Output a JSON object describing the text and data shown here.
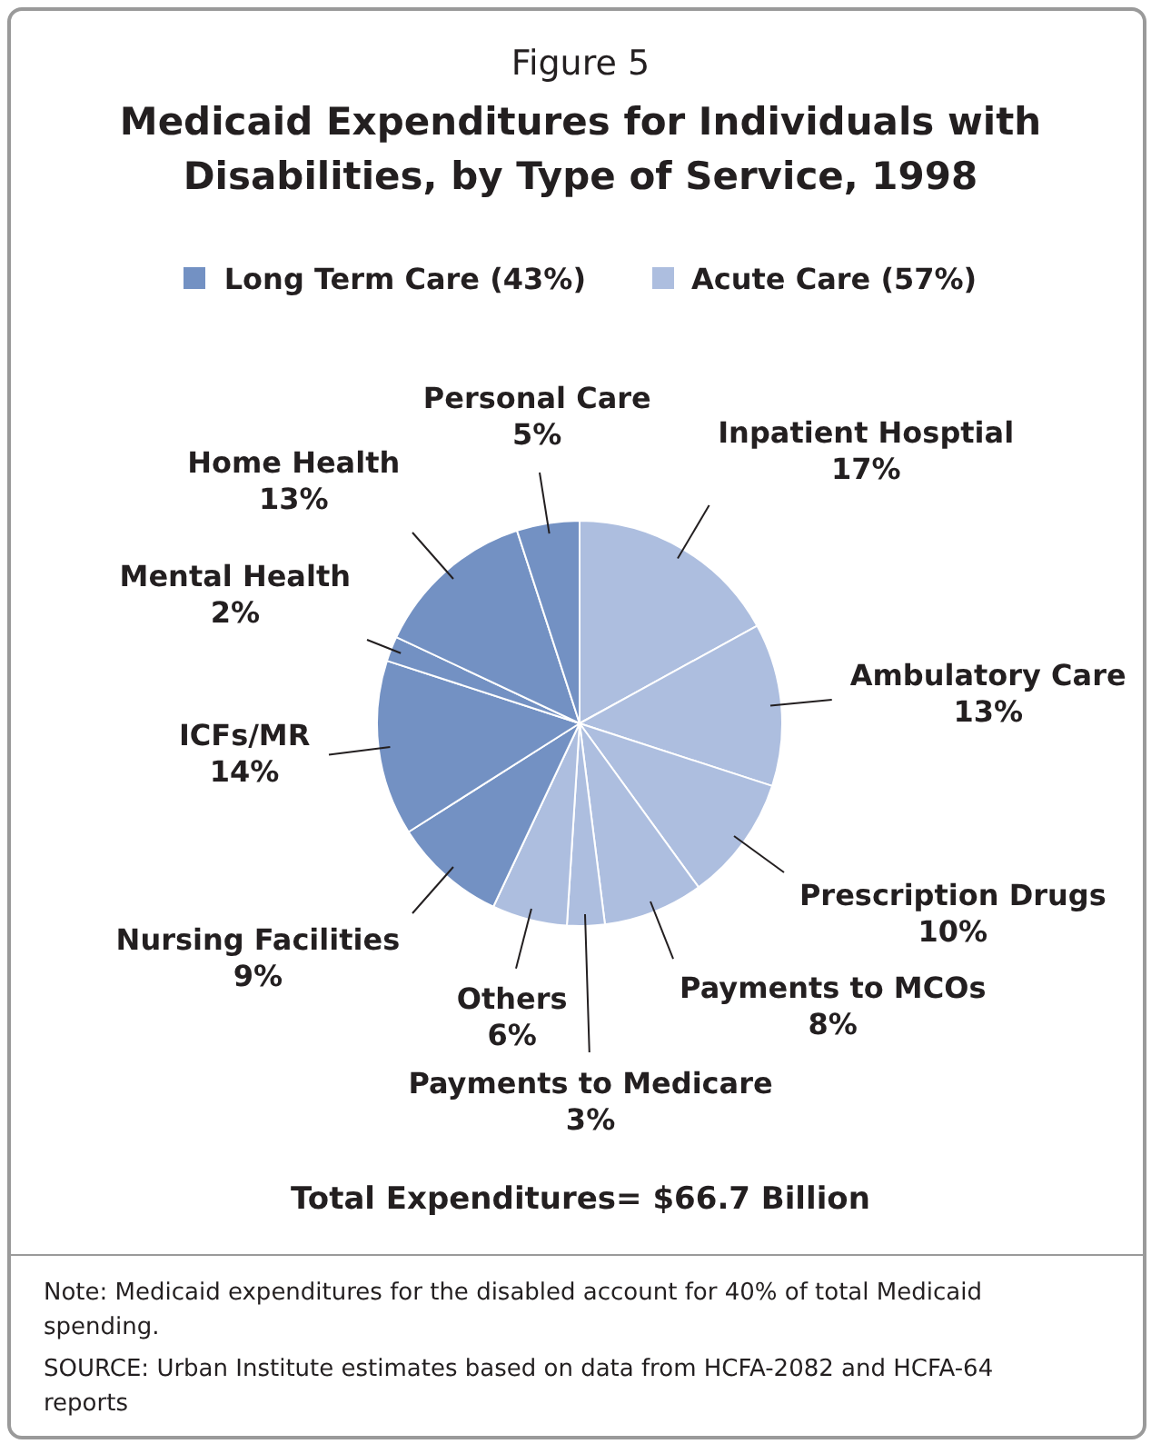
{
  "chart_data": {
    "type": "pie",
    "subtitle": "Figure 5",
    "title": "Medicaid Expenditures for Individuals with Disabilities, by Type of Service, 1998",
    "categories": [
      "Inpatient Hosptial",
      "Ambulatory Care",
      "Prescription Drugs",
      "Payments to MCOs",
      "Payments to Medicare",
      "Others",
      "Nursing Facilities",
      "ICFs/MR",
      "Mental Health",
      "Home Health",
      "Personal Care"
    ],
    "values": [
      17,
      13,
      10,
      8,
      3,
      6,
      9,
      14,
      2,
      13,
      5
    ],
    "colors": [
      "#adbedf",
      "#adbedf",
      "#adbedf",
      "#adbedf",
      "#adbedf",
      "#adbedf",
      "#7391c3",
      "#7391c3",
      "#7391c3",
      "#7391c3",
      "#7391c3"
    ],
    "value_labels": [
      "17%",
      "13%",
      "10%",
      "8%",
      "3%",
      "6%",
      "9%",
      "14%",
      "2%",
      "13%",
      "5%"
    ],
    "annotations": [
      "Long Term Care (43%)",
      "Acute Care (57%)",
      "Total Expenditures= $66.7 Billion",
      "Note: Medicaid expenditures for the disabled account for 40% of total Medicaid spending.",
      "SOURCE: Urban Institute estimates based on data from HCFA-2082 and HCFA-64 reports"
    ]
  }
}
